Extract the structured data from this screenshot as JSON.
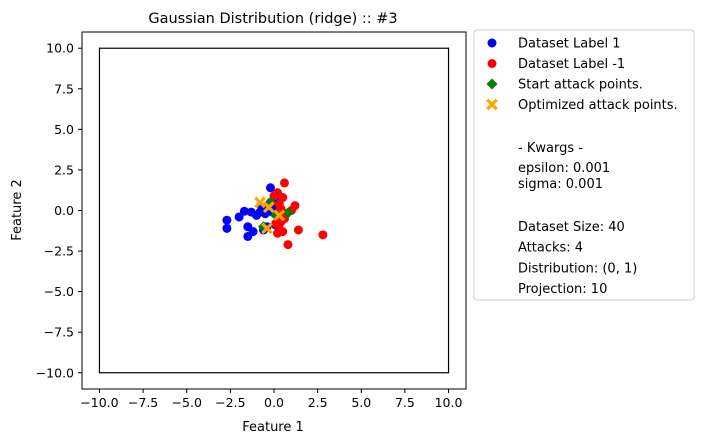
{
  "chart_data": {
    "type": "scatter",
    "title": "Gaussian Distribution (ridge) :: #3",
    "xlabel": "Feature 1",
    "ylabel": "Feature 2",
    "xlim": [
      -11,
      11
    ],
    "ylim": [
      -11,
      11
    ],
    "xticks": [
      -10.0,
      -7.5,
      -5.0,
      -2.5,
      0.0,
      2.5,
      5.0,
      7.5,
      10.0
    ],
    "yticks": [
      -10.0,
      -7.5,
      -5.0,
      -2.5,
      0.0,
      2.5,
      5.0,
      7.5,
      10.0
    ],
    "xtick_labels": [
      "−10.0",
      "−7.5",
      "−5.0",
      "−2.5",
      "0.0",
      "2.5",
      "5.0",
      "7.5",
      "10.0"
    ],
    "ytick_labels": [
      "−10.0",
      "−7.5",
      "−5.0",
      "−2.5",
      "0.0",
      "2.5",
      "5.0",
      "7.5",
      "10.0"
    ],
    "bounding_box": {
      "x0": -10,
      "y0": -10,
      "x1": 10,
      "y1": 10
    },
    "grid": false,
    "legend_position": "outside right",
    "series": [
      {
        "name": "Dataset Label 1",
        "color": "#0000ff",
        "marker": "circle",
        "points": [
          [
            -2.7,
            -0.6
          ],
          [
            -2.7,
            -1.1
          ],
          [
            -2.0,
            -0.4
          ],
          [
            -1.7,
            -0.05
          ],
          [
            -1.5,
            -1.0
          ],
          [
            -1.5,
            -1.6
          ],
          [
            -1.3,
            -0.1
          ],
          [
            -1.2,
            -1.3
          ],
          [
            -1.0,
            -0.3
          ],
          [
            -0.8,
            -0.1
          ],
          [
            -0.6,
            -1.2
          ],
          [
            -0.4,
            -1.0
          ],
          [
            -0.3,
            0.3
          ],
          [
            -0.2,
            1.4
          ],
          [
            0.0,
            0.2
          ],
          [
            -0.7,
            0.1
          ],
          [
            0.1,
            -0.9
          ],
          [
            -0.1,
            -0.1
          ],
          [
            0.2,
            0.6
          ],
          [
            -0.5,
            -0.2
          ]
        ]
      },
      {
        "name": "Dataset Label -1",
        "color": "#ff0000",
        "marker": "circle",
        "points": [
          [
            0.6,
            1.7
          ],
          [
            0.2,
            1.1
          ],
          [
            0.5,
            0.8
          ],
          [
            1.2,
            0.3
          ],
          [
            0.4,
            0.1
          ],
          [
            0.6,
            -0.5
          ],
          [
            1.4,
            -1.2
          ],
          [
            0.5,
            -1.3
          ],
          [
            0.2,
            -1.4
          ],
          [
            0.8,
            -2.1
          ],
          [
            2.8,
            -1.5
          ],
          [
            0.1,
            -0.8
          ],
          [
            0.3,
            0.4
          ],
          [
            -0.2,
            0.5
          ],
          [
            0.7,
            -0.2
          ],
          [
            0.2,
            -0.2
          ],
          [
            1.0,
            0.0
          ],
          [
            0.4,
            -0.7
          ],
          [
            0.0,
            0.9
          ],
          [
            0.3,
            -1.1
          ]
        ]
      },
      {
        "name": "Start attack points.",
        "color": "#008000",
        "marker": "diamond",
        "points": [
          [
            -0.2,
            0.5
          ],
          [
            -0.6,
            -1.0
          ],
          [
            0.1,
            -0.3
          ],
          [
            0.8,
            -0.15
          ]
        ]
      },
      {
        "name": "Optimized attack points.",
        "color": "#ffa500",
        "marker": "x",
        "points": [
          [
            -0.8,
            0.5
          ],
          [
            -0.3,
            0.2
          ],
          [
            -0.4,
            -1.1
          ],
          [
            0.3,
            -0.3
          ]
        ]
      }
    ],
    "legend_text": {
      "kwargs_header": " - Kwargs -",
      "kwargs": [
        "epsilon: 0.001",
        "sigma: 0.001"
      ],
      "info": [
        "Dataset Size: 40",
        "Attacks: 4",
        "Distribution: (0, 1)",
        "Projection: 10"
      ]
    }
  }
}
